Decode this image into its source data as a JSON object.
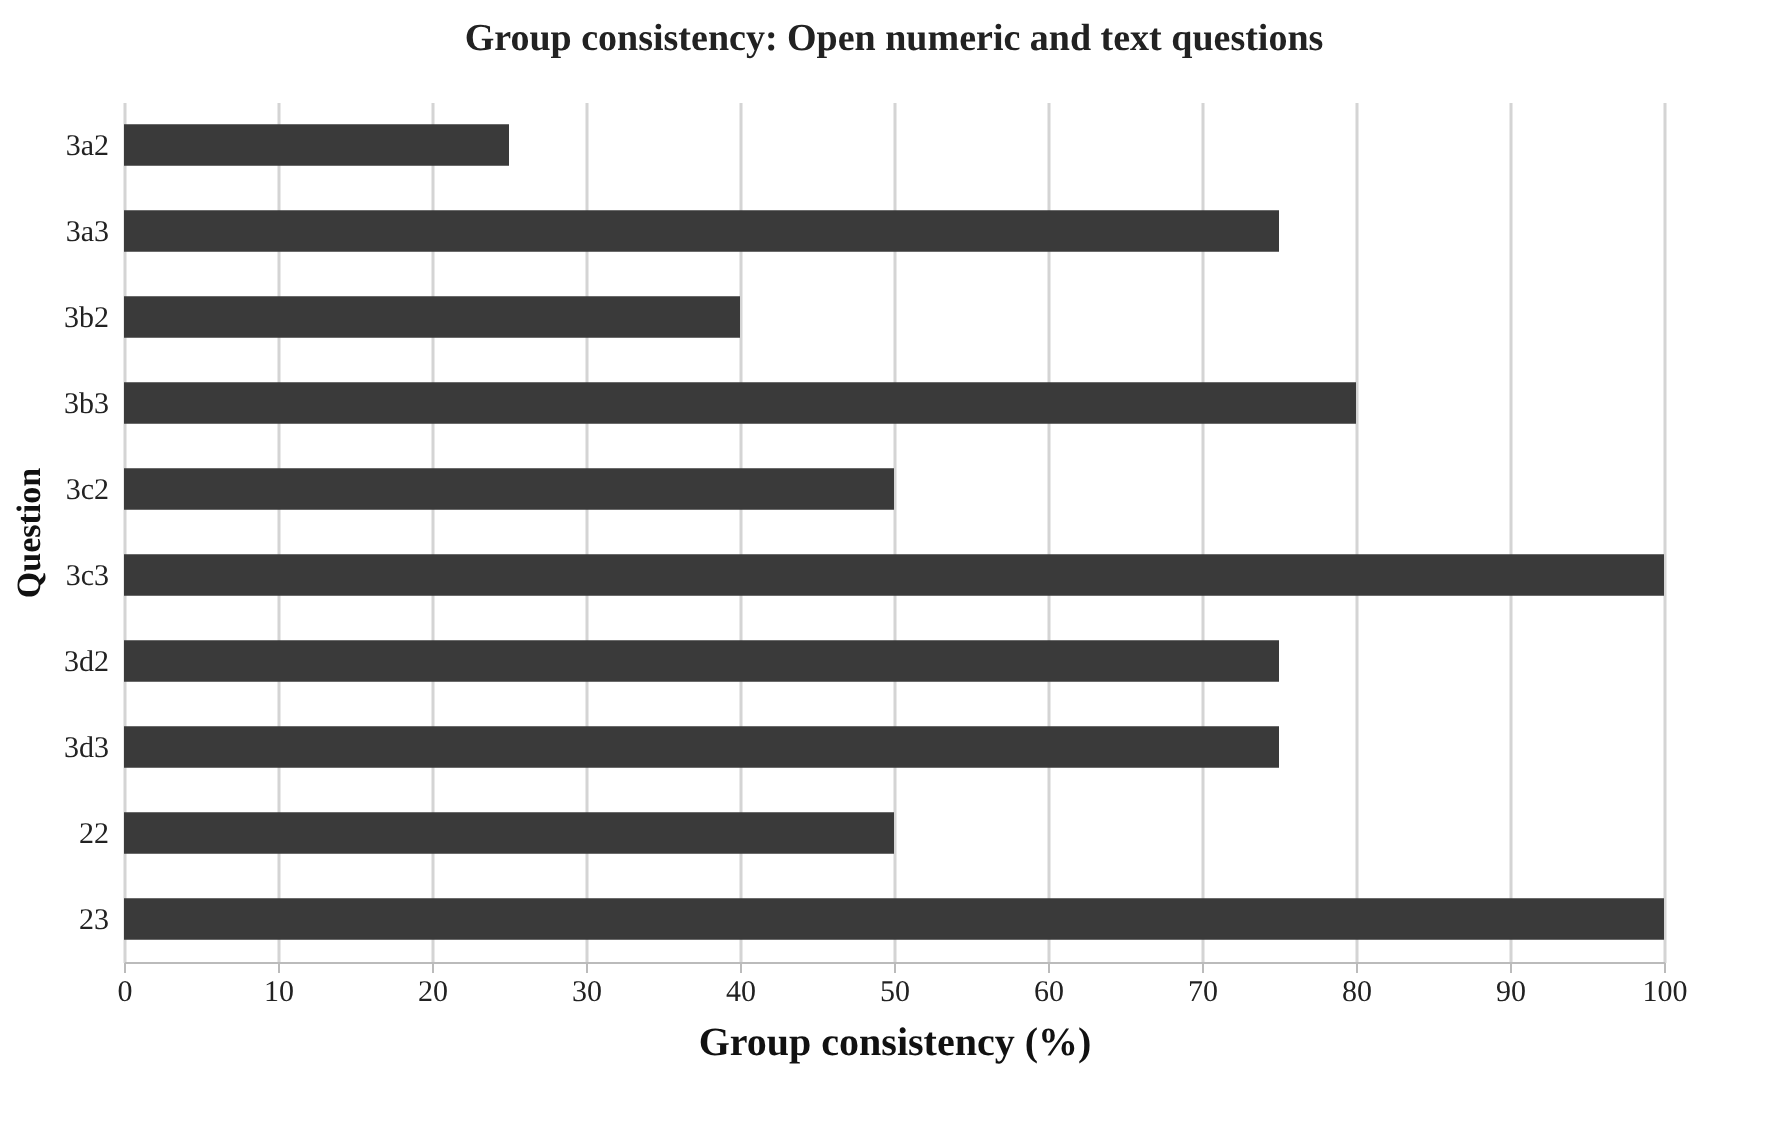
{
  "chart_data": {
    "type": "bar",
    "orientation": "horizontal",
    "title": "Group consistency: Open numeric and text questions",
    "xlabel": "Group consistency (%)",
    "ylabel": "Question",
    "categories": [
      "3a2",
      "3a3",
      "3b2",
      "3b3",
      "3c2",
      "3c3",
      "3d2",
      "3d3",
      "22",
      "23"
    ],
    "values": [
      25,
      75,
      40,
      80,
      50,
      100,
      75,
      75,
      50,
      100
    ],
    "color": "#3a3a3a",
    "xlim": [
      0,
      100
    ],
    "xticks": [
      0,
      10,
      20,
      30,
      40,
      50,
      60,
      70,
      80,
      90,
      100
    ],
    "grid": "x"
  }
}
